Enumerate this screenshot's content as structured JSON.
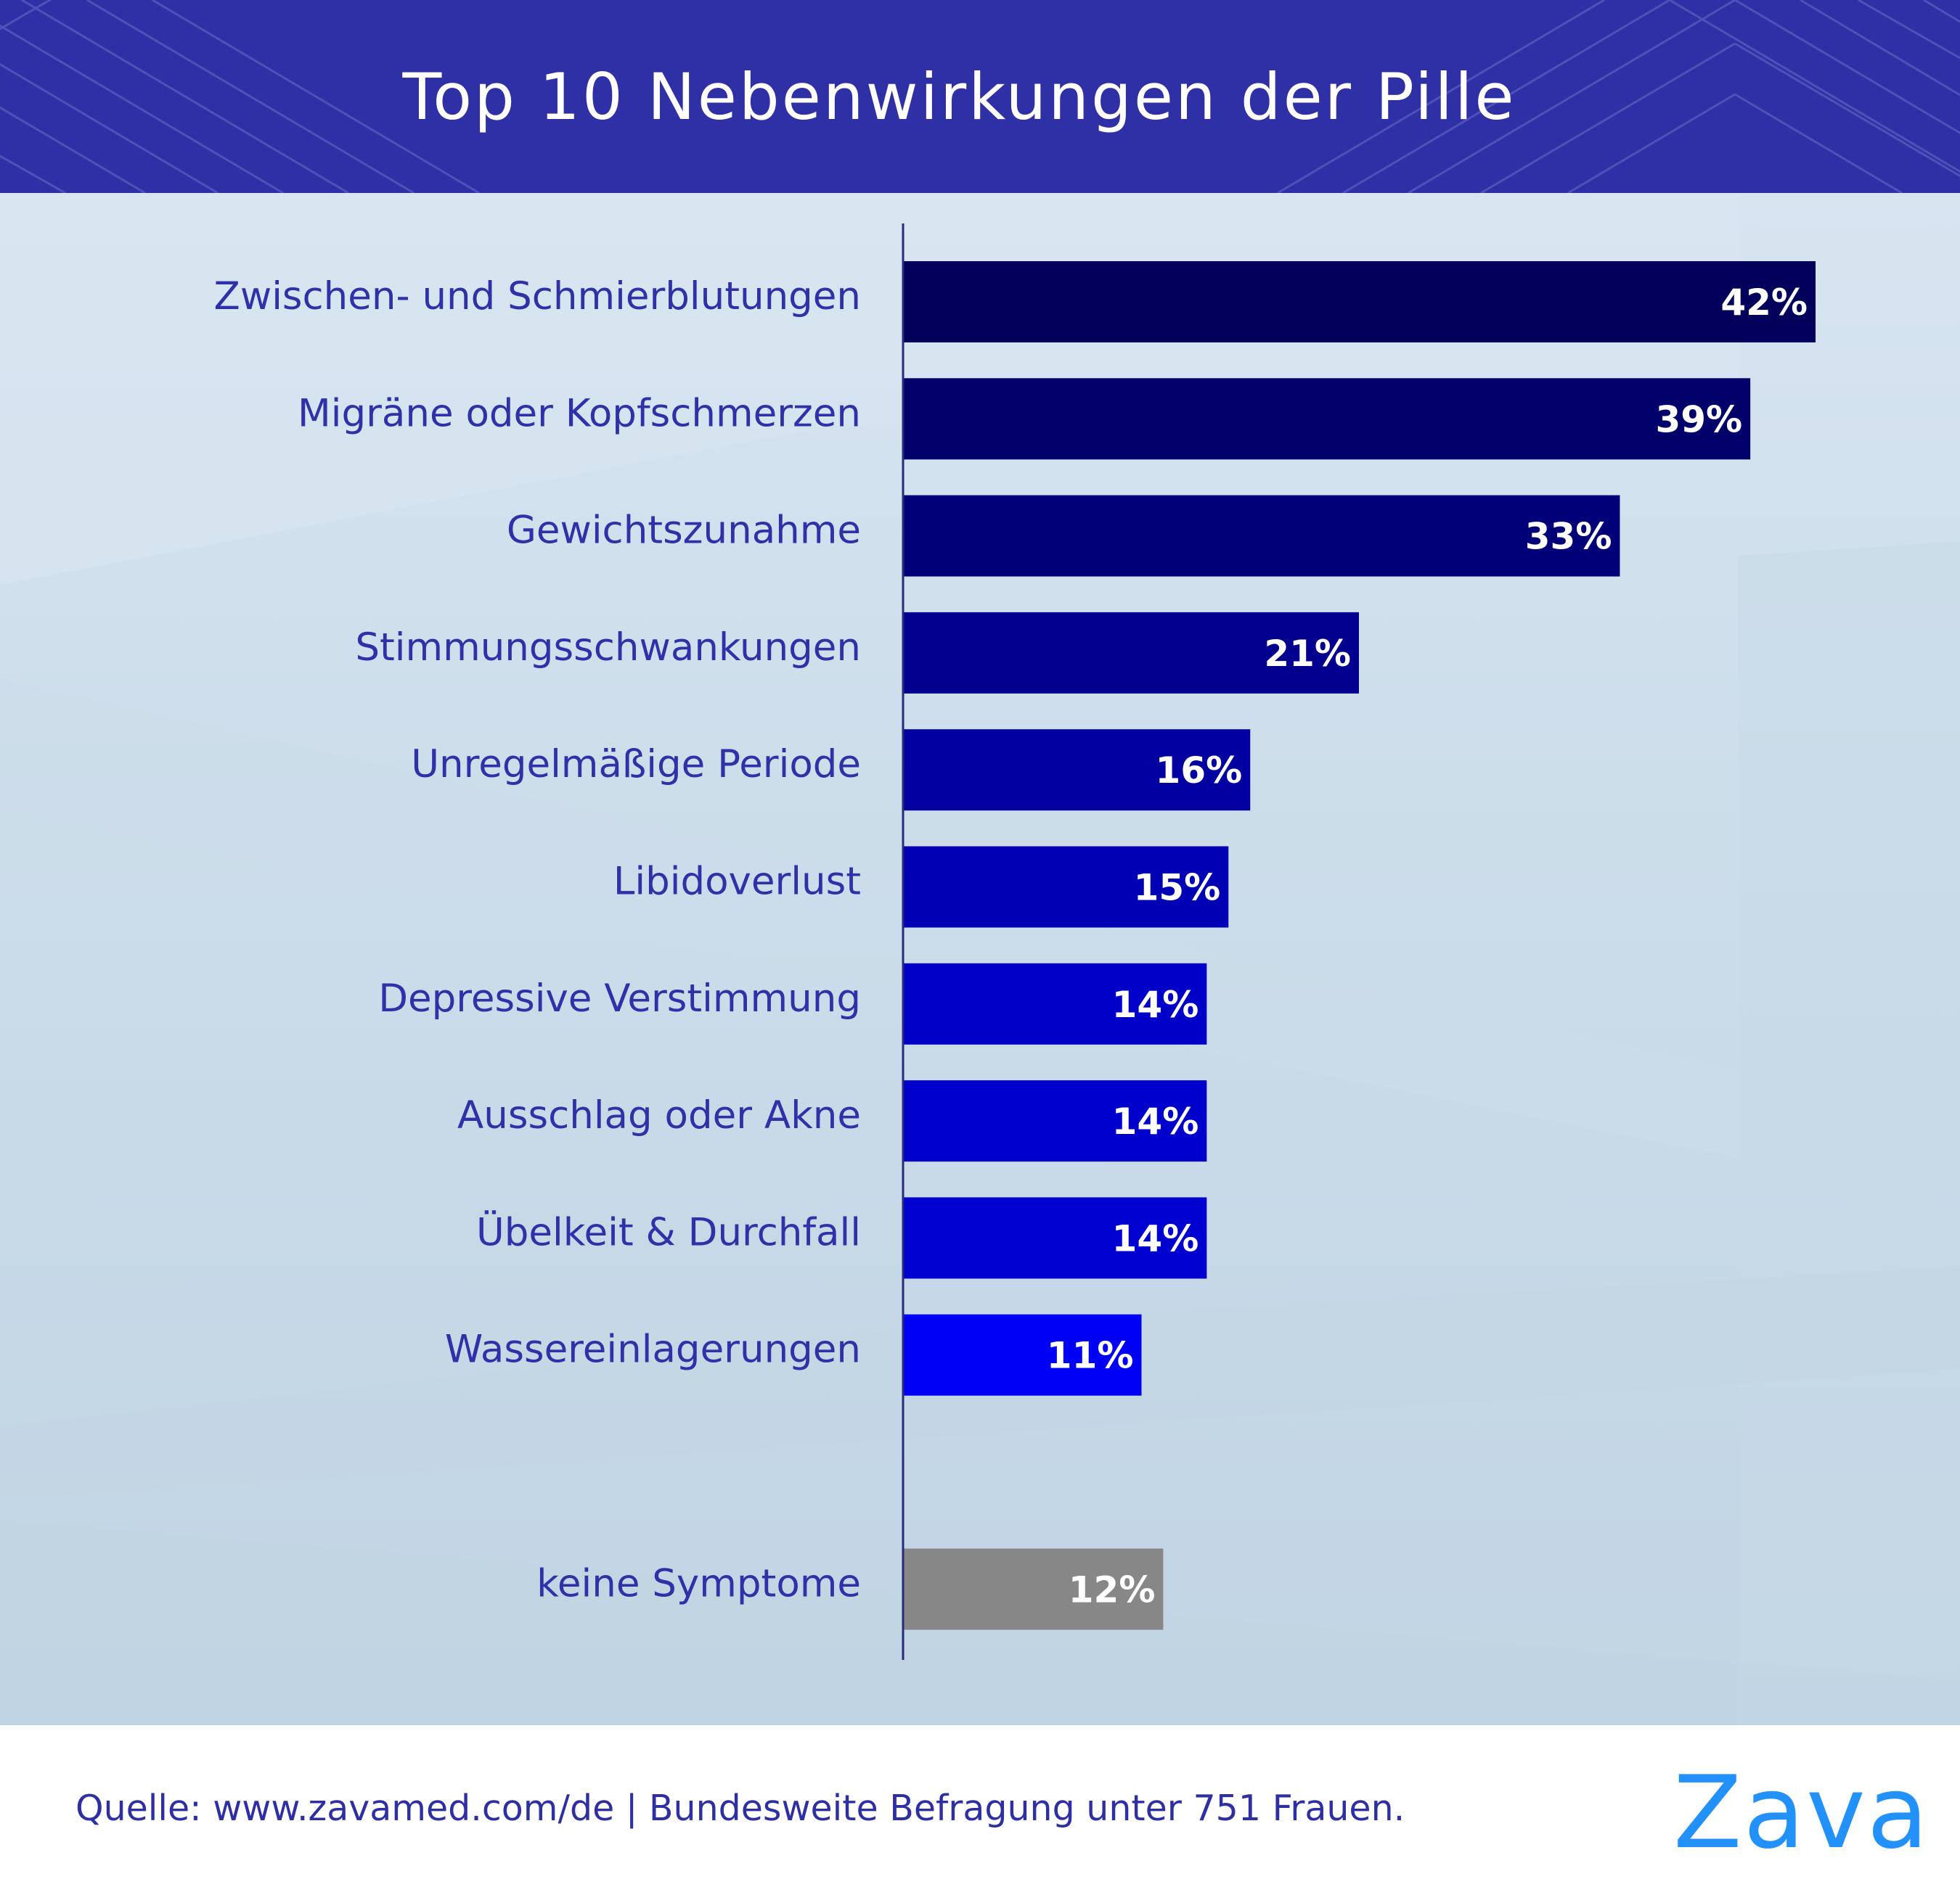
{
  "header": {
    "title": "Top 10 Nebenwirkungen der Pille",
    "background_color": "#3030a6"
  },
  "footer": {
    "source": "Quelle: www.zavamed.com/de | Bundesweite Befragung unter 751 Frauen.",
    "logo": "Zava",
    "logo_color": "#2291fa"
  },
  "chart_data": {
    "type": "bar",
    "orientation": "horizontal",
    "title": "Top 10 Nebenwirkungen der Pille",
    "xlabel": "",
    "ylabel": "",
    "unit": "%",
    "xlim": [
      0,
      42
    ],
    "grid": false,
    "legend": "none",
    "categories": [
      "Zwischen- und Schmierblutungen",
      "Migräne oder Kopfschmerzen",
      "Gewichtszunahme",
      "Stimmungsschwankungen",
      "Unregelmäßige Periode",
      "Libidoverlust",
      "Depressive Verstimmung",
      "Ausschlag oder Akne",
      "Übelkeit & Durchfall",
      "Wassereinlagerungen",
      "keine Symptome"
    ],
    "values": [
      42,
      39,
      33,
      21,
      16,
      15,
      14,
      14,
      14,
      11,
      12
    ],
    "value_labels": [
      "42%",
      "39%",
      "33%",
      "21%",
      "16%",
      "15%",
      "14%",
      "14%",
      "14%",
      "11%",
      "12%"
    ],
    "colors": [
      "#02005a",
      "#02006a",
      "#010078",
      "#030090",
      "#0300a2",
      "#0200b5",
      "#0000c8",
      "#0000cc",
      "#0000d0",
      "#0000f5",
      "#878787"
    ],
    "separated_last_category": true
  }
}
